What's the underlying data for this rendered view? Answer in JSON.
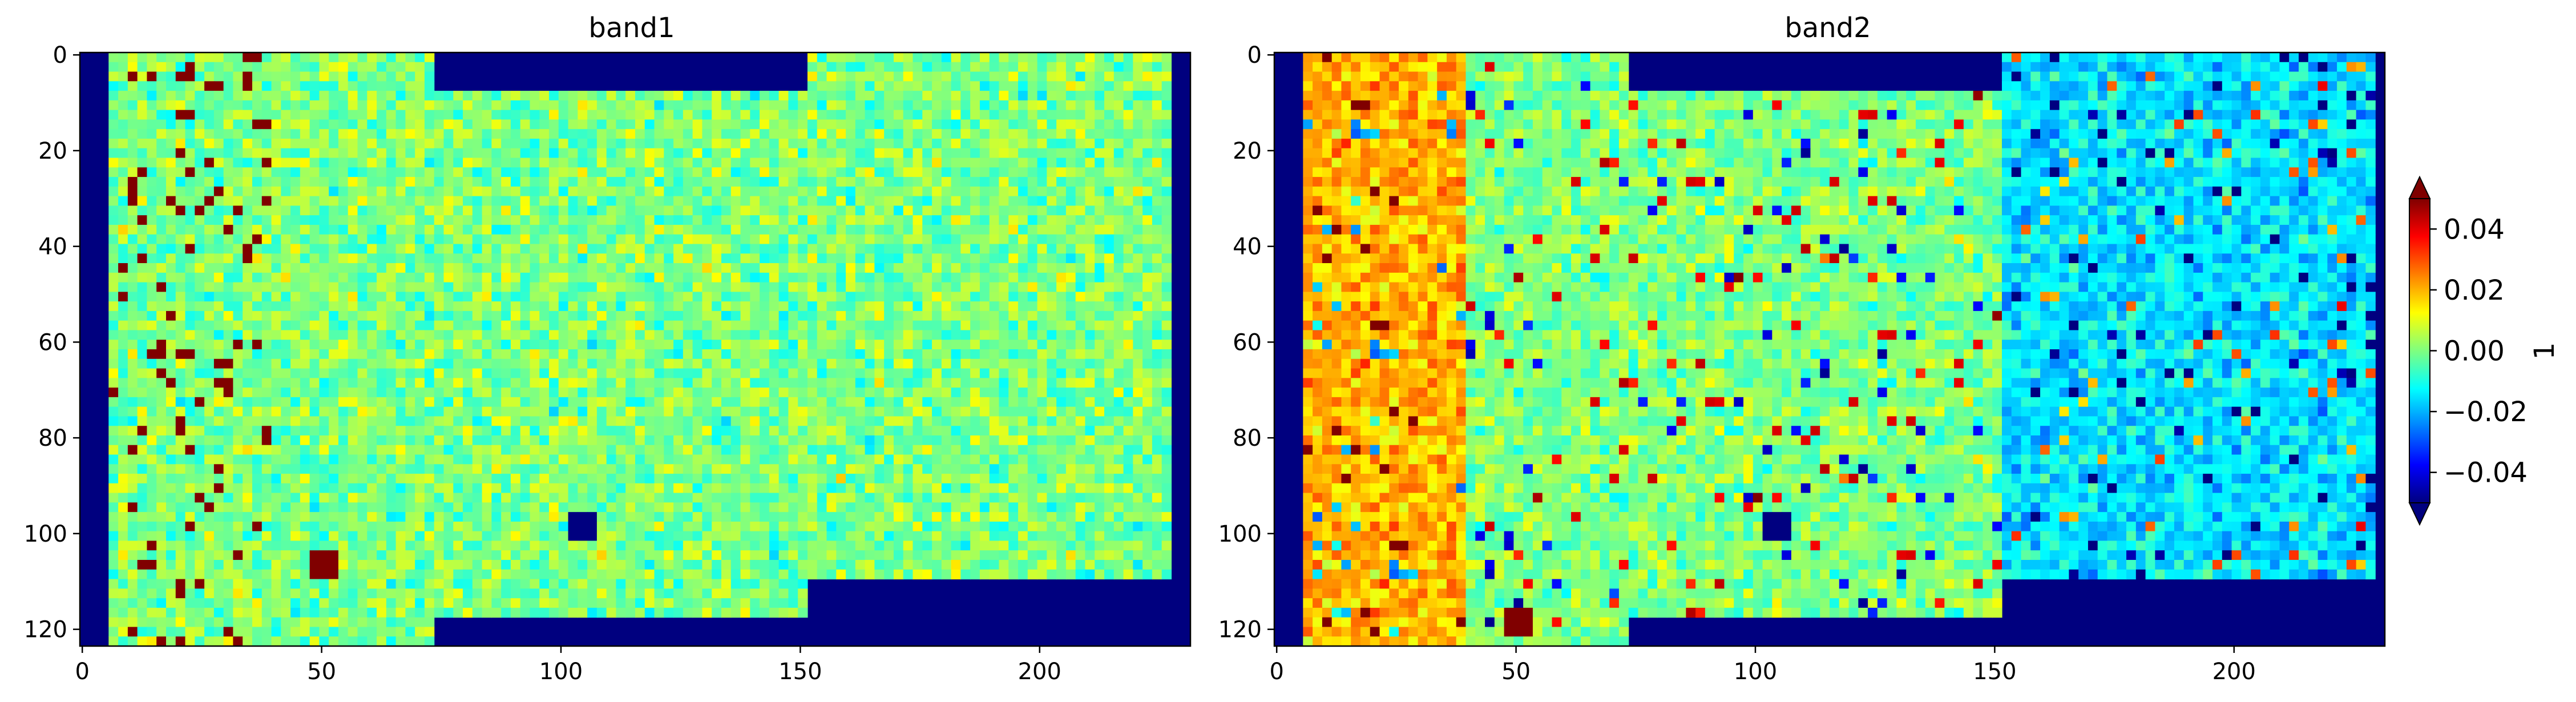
{
  "chart_data": [
    {
      "type": "heatmap",
      "title": "band1",
      "xlabel": "",
      "ylabel": "",
      "x_range": [
        -0.5,
        231.5
      ],
      "y_range": [
        123.5,
        -0.5
      ],
      "x_ticks": [
        0,
        50,
        100,
        150,
        200
      ],
      "y_ticks": [
        0,
        20,
        40,
        60,
        80,
        100,
        120
      ],
      "colormap": "jet",
      "clim": [
        -0.05,
        0.05
      ],
      "nodata_color": "#00007f",
      "valid_region": [
        {
          "rows": [
            4,
            98
          ],
          "cols": [
            5,
            73
          ]
        },
        {
          "rows": [
            8,
            116
          ],
          "cols": [
            73,
            151
          ]
        },
        {
          "rows": [
            0,
            108
          ],
          "cols": [
            151,
            227
          ]
        },
        {
          "rows": [
            98,
            123
          ],
          "cols": [
            4,
            73
          ]
        },
        {
          "rows": [
            0,
            116
          ],
          "cols": [
            73,
            150
          ]
        }
      ],
      "features": [
        {
          "row": 98,
          "col": 104,
          "value": -0.05
        },
        {
          "row": 106,
          "col": 50,
          "value": 0.05
        }
      ]
    },
    {
      "type": "heatmap",
      "title": "band2",
      "xlabel": "",
      "ylabel": "",
      "x_range": [
        -0.5,
        231.5
      ],
      "y_range": [
        123.5,
        -0.5
      ],
      "x_ticks": [
        0,
        50,
        100,
        150,
        200
      ],
      "y_ticks": [
        0,
        20,
        40,
        60,
        80,
        100,
        120
      ],
      "colormap": "jet",
      "clim": [
        -0.05,
        0.05
      ],
      "nodata_color": "#00007f",
      "features": [
        {
          "row": 98,
          "col": 104,
          "value": -0.05
        },
        {
          "row": 118,
          "col": 50,
          "value": 0.05
        }
      ]
    }
  ],
  "colorbar": {
    "label": "1",
    "ticks": [
      {
        "value": 0.04,
        "label": "0.04"
      },
      {
        "value": 0.02,
        "label": "0.02"
      },
      {
        "value": 0.0,
        "label": "0.00"
      },
      {
        "value": -0.02,
        "label": "−0.02"
      },
      {
        "value": -0.04,
        "label": "−0.04"
      }
    ],
    "extend": "both"
  }
}
